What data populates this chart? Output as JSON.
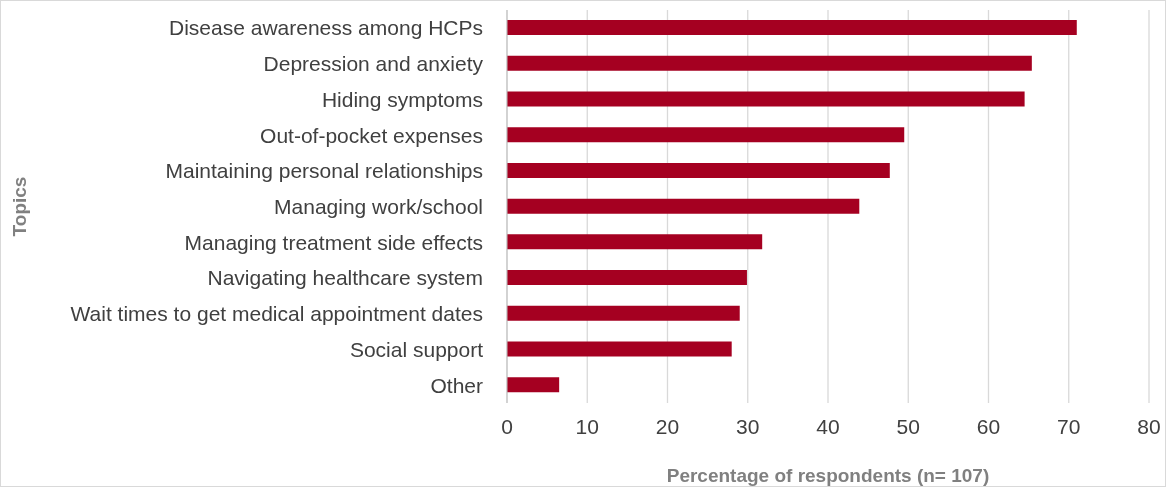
{
  "chart_data": {
    "type": "bar",
    "orientation": "horizontal",
    "xlabel": "Percentage of respondents (n= 107)",
    "ylabel": "Topics",
    "categories": [
      "Disease awareness among HCPs",
      "Depression and anxiety",
      "Hiding symptoms",
      "Out-of-pocket expenses",
      "Maintaining personal relationships",
      "Managing work/school",
      "Managing treatment side effects",
      "Navigating healthcare system",
      "Wait times to get medical appointment dates",
      "Social support",
      "Other"
    ],
    "values": [
      71.0,
      65.4,
      64.5,
      49.5,
      47.7,
      43.9,
      31.8,
      29.9,
      29.0,
      28.0,
      6.5
    ],
    "color": "#a50021",
    "xlim": [
      0,
      80
    ],
    "xticks": [
      0,
      10,
      20,
      30,
      40,
      50,
      60,
      70,
      80
    ],
    "grid": "x",
    "legend": false
  }
}
